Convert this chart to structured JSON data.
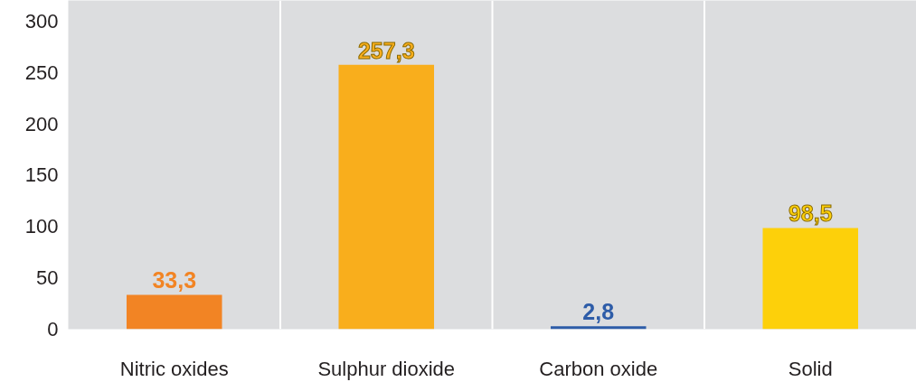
{
  "chart_data": {
    "type": "bar",
    "categories": [
      "Nitric oxides",
      "Sulphur dioxide",
      "Carbon oxide",
      "Solid"
    ],
    "values": [
      33.3,
      257.3,
      2.8,
      98.5
    ],
    "colors": [
      "#f28424",
      "#f9ae1c",
      "#2e5ca8",
      "#fdd00a"
    ],
    "value_labels": [
      "33,3",
      "257,3",
      "2,8",
      "98,5"
    ],
    "ylim": [
      0,
      320
    ],
    "yticks": [
      0,
      50,
      100,
      150,
      200,
      250,
      300
    ],
    "grid": "x"
  }
}
